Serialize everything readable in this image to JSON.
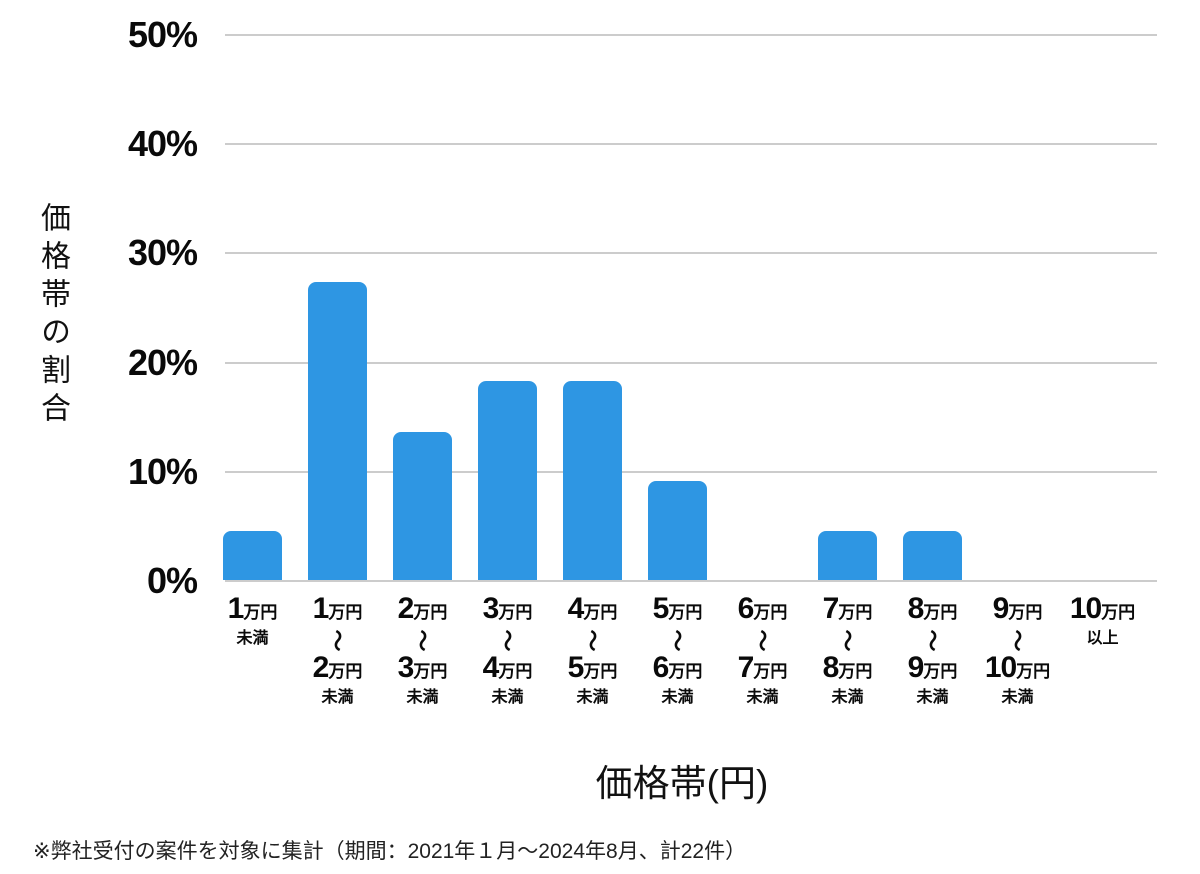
{
  "chart_data": {
    "type": "bar",
    "title": "",
    "xlabel": "価格帯(円)",
    "ylabel": "価格帯の割合",
    "ylim": [
      0,
      50
    ],
    "yticks": [
      "0%",
      "10%",
      "20%",
      "30%",
      "40%",
      "50%"
    ],
    "grid": "horizontal",
    "legend": "none",
    "bar_color": "#2E96E3",
    "gridline_color": "#cccccc",
    "categories": [
      {
        "n1": "1",
        "u1": "万円",
        "tilde": false,
        "n2": "",
        "u2": "",
        "suffix": "未満"
      },
      {
        "n1": "1",
        "u1": "万円",
        "tilde": true,
        "n2": "2",
        "u2": "万円",
        "suffix": "未満"
      },
      {
        "n1": "2",
        "u1": "万円",
        "tilde": true,
        "n2": "3",
        "u2": "万円",
        "suffix": "未満"
      },
      {
        "n1": "3",
        "u1": "万円",
        "tilde": true,
        "n2": "4",
        "u2": "万円",
        "suffix": "未満"
      },
      {
        "n1": "4",
        "u1": "万円",
        "tilde": true,
        "n2": "5",
        "u2": "万円",
        "suffix": "未満"
      },
      {
        "n1": "5",
        "u1": "万円",
        "tilde": true,
        "n2": "6",
        "u2": "万円",
        "suffix": "未満"
      },
      {
        "n1": "6",
        "u1": "万円",
        "tilde": true,
        "n2": "7",
        "u2": "万円",
        "suffix": "未満"
      },
      {
        "n1": "7",
        "u1": "万円",
        "tilde": true,
        "n2": "8",
        "u2": "万円",
        "suffix": "未満"
      },
      {
        "n1": "8",
        "u1": "万円",
        "tilde": true,
        "n2": "9",
        "u2": "万円",
        "suffix": "未満"
      },
      {
        "n1": "9",
        "u1": "万円",
        "tilde": true,
        "n2": "10",
        "u2": "万円",
        "suffix": "未満"
      },
      {
        "n1": "10",
        "u1": "万円",
        "tilde": false,
        "n2": "",
        "u2": "",
        "suffix": "以上"
      }
    ],
    "tilde_glyph": "〜",
    "values": [
      4.5,
      27.3,
      13.6,
      18.2,
      18.2,
      9.1,
      0,
      4.5,
      4.5,
      0,
      0
    ]
  },
  "footnote": "※弊社受付の案件を対象に集計（期間：2021年１月～2024年8月、計22件）"
}
